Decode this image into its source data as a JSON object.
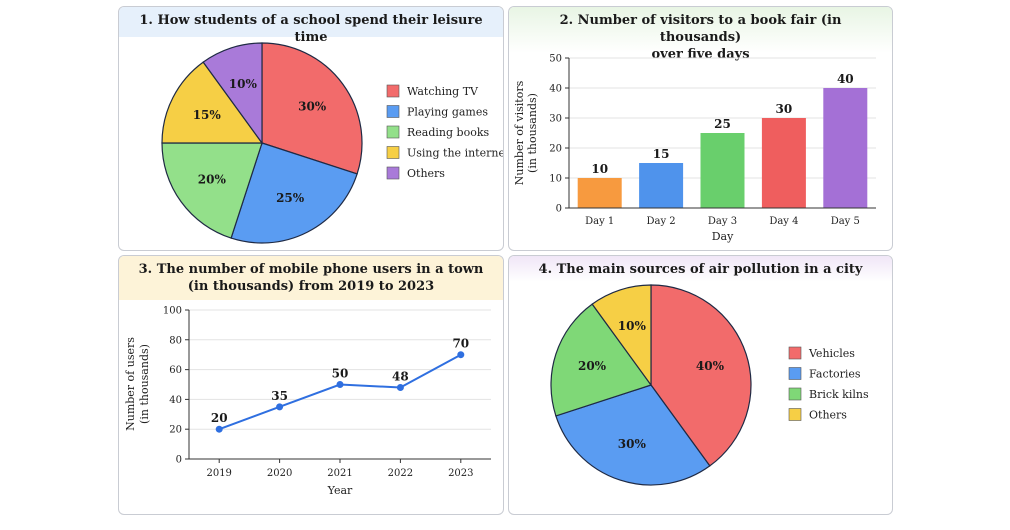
{
  "chart_data": [
    {
      "type": "pie",
      "title": "1. How students of a school spend their leisure time",
      "categories": [
        "Watching TV",
        "Playing games",
        "Reading books",
        "Using the internet",
        "Others"
      ],
      "values": [
        30,
        25,
        20,
        15,
        10
      ],
      "labels": [
        "30%",
        "25%",
        "20%",
        "15%",
        "10%"
      ],
      "colors": [
        "#f26b6b",
        "#5a9cf2",
        "#93e08a",
        "#f6cf45",
        "#a97ad9"
      ],
      "legend_position": "right"
    },
    {
      "type": "bar",
      "title_lines": [
        "2. Number of visitors to a book fair (in thousands)",
        "over five days"
      ],
      "categories": [
        "Day 1",
        "Day 2",
        "Day 3",
        "Day 4",
        "Day 5"
      ],
      "values": [
        10,
        15,
        25,
        30,
        40
      ],
      "value_labels": [
        "10",
        "15",
        "25",
        "30",
        "40"
      ],
      "colors": [
        "#f79a3f",
        "#4f93ec",
        "#69cf6c",
        "#ef5e5e",
        "#a470d6"
      ],
      "xlabel": "Day",
      "ylabel_lines": [
        "Number of visitors",
        "(in thousands)"
      ],
      "ylim": [
        0,
        50
      ],
      "yticks": [
        "0",
        "10",
        "20",
        "30",
        "40",
        "50"
      ],
      "grid": true
    },
    {
      "type": "line",
      "title_lines": [
        "3. The number of mobile phone users in a town",
        "(in thousands) from 2019 to 2023"
      ],
      "x": [
        "2019",
        "2020",
        "2021",
        "2022",
        "2023"
      ],
      "values": [
        20,
        35,
        50,
        48,
        70
      ],
      "value_labels": [
        "20",
        "35",
        "50",
        "48",
        "70"
      ],
      "color": "#2f6fe0",
      "xlabel": "Year",
      "ylabel_lines": [
        "Number of users",
        "(in thousands)"
      ],
      "ylim": [
        0,
        100
      ],
      "yticks": [
        "0",
        "20",
        "40",
        "60",
        "80",
        "100"
      ],
      "grid": true
    },
    {
      "type": "pie",
      "title": "4. The main sources of air pollution in a city",
      "categories": [
        "Vehicles",
        "Factories",
        "Brick kilns",
        "Others"
      ],
      "values": [
        40,
        30,
        20,
        10
      ],
      "labels": [
        "40%",
        "30%",
        "20%",
        "10%"
      ],
      "colors": [
        "#f26b6b",
        "#5a9cf2",
        "#7fd877",
        "#f6cf45"
      ],
      "legend_position": "right"
    }
  ]
}
